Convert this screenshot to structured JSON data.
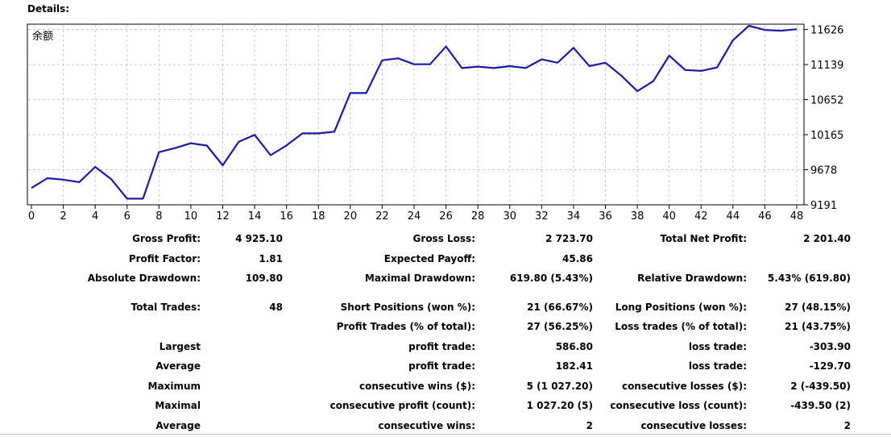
{
  "heading": "Details:",
  "chart_data": {
    "type": "line",
    "title": "余额",
    "y_ticks": [
      9191,
      9678,
      10165,
      10652,
      11139,
      11626
    ],
    "ylim": [
      9191,
      11700
    ],
    "x_ticks": [
      0,
      2,
      4,
      6,
      8,
      10,
      12,
      14,
      16,
      18,
      20,
      22,
      24,
      26,
      28,
      30,
      32,
      34,
      36,
      38,
      40,
      42,
      44,
      46,
      48
    ],
    "xlim": [
      0,
      48
    ],
    "grid": true,
    "color": "#1a1aa6",
    "series": [
      {
        "name": "余额",
        "x": [
          0,
          1,
          2,
          3,
          4,
          5,
          6,
          7,
          8,
          9,
          10,
          11,
          12,
          13,
          14,
          15,
          16,
          17,
          18,
          19,
          20,
          21,
          22,
          23,
          24,
          25,
          26,
          27,
          28,
          29,
          30,
          31,
          32,
          33,
          34,
          35,
          36,
          37,
          38,
          39,
          40,
          41,
          42,
          43,
          44,
          45,
          46,
          47,
          48
        ],
        "values": [
          9424,
          9561,
          9540,
          9506,
          9718,
          9548,
          9276,
          9276,
          9922,
          9978,
          10046,
          10014,
          9740,
          10066,
          10162,
          9880,
          10016,
          10183,
          10183,
          10206,
          10744,
          10744,
          11198,
          11226,
          11143,
          11143,
          11390,
          11091,
          11111,
          11091,
          11117,
          11091,
          11212,
          11165,
          11372,
          11117,
          11165,
          10985,
          10769,
          10908,
          11263,
          11064,
          11051,
          11098,
          11477,
          11678,
          11620,
          11608,
          11630
        ]
      }
    ]
  },
  "stats": {
    "gross_profit_label": "Gross Profit:",
    "gross_profit": "4 925.10",
    "gross_loss_label": "Gross Loss:",
    "gross_loss": "2 723.70",
    "total_net_profit_label": "Total Net Profit:",
    "total_net_profit": "2 201.40",
    "profit_factor_label": "Profit Factor:",
    "profit_factor": "1.81",
    "expected_payoff_label": "Expected Payoff:",
    "expected_payoff": "45.86",
    "absolute_drawdown_label": "Absolute Drawdown:",
    "absolute_drawdown": "109.80",
    "maximal_drawdown_label": "Maximal Drawdown:",
    "maximal_drawdown": "619.80 (5.43%)",
    "relative_drawdown_label": "Relative Drawdown:",
    "relative_drawdown": "5.43% (619.80)",
    "total_trades_label": "Total Trades:",
    "total_trades": "48",
    "short_positions_label": "Short Positions (won %):",
    "short_positions": "21 (66.67%)",
    "long_positions_label": "Long Positions (won %):",
    "long_positions": "27 (48.15%)",
    "profit_trades_label": "Profit Trades (% of total):",
    "profit_trades": "27 (56.25%)",
    "loss_trades_label": "Loss trades (% of total):",
    "loss_trades": "21 (43.75%)",
    "largest_label": "Largest",
    "largest_profit_label": "profit trade:",
    "largest_profit": "586.80",
    "largest_loss_label": "loss trade:",
    "largest_loss": "-303.90",
    "average_label": "Average",
    "average_profit_label": "profit trade:",
    "average_profit": "182.41",
    "average_loss_label": "loss trade:",
    "average_loss": "-129.70",
    "maximum_label": "Maximum",
    "max_consec_wins_label": "consecutive wins ($):",
    "max_consec_wins": "5 (1 027.20)",
    "max_consec_losses_label": "consecutive losses ($):",
    "max_consec_losses": "2 (-439.50)",
    "maximal_label": "Maximal",
    "maximal_consec_profit_label": "consecutive profit (count):",
    "maximal_consec_profit": "1 027.20 (5)",
    "maximal_consec_loss_label": "consecutive loss (count):",
    "maximal_consec_loss": "-439.50 (2)",
    "average2_label": "Average",
    "avg_consec_wins_label": "consecutive wins:",
    "avg_consec_wins": "2",
    "avg_consec_losses_label": "consecutive losses:",
    "avg_consec_losses": "2"
  }
}
